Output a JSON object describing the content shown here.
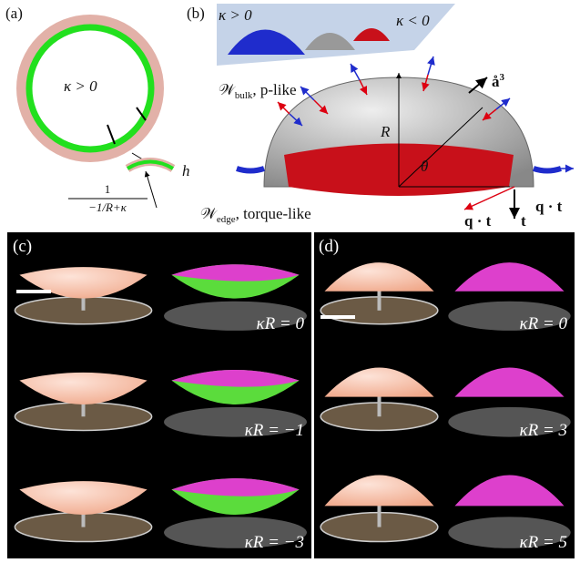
{
  "panel_a": {
    "label": "(a)",
    "curvature": "κ > 0",
    "fraction_numerator": "1",
    "fraction_denominator": "−1/R+κ",
    "thickness": "h"
  },
  "panel_b": {
    "label": "(b)",
    "inset_left": "κ > 0",
    "inset_right": "κ < 0",
    "bulk": {
      "symbol": "𝒲",
      "subscript": "bulk",
      "text": ", p-like"
    },
    "radius": "R",
    "angle": "θ",
    "normal": "å",
    "normal_index": "3",
    "edge": {
      "symbol": "𝒲",
      "subscript": "edge",
      "text": ", torque-like"
    },
    "force_left": "q · t",
    "tangent": "t",
    "force_right": "q · t"
  },
  "panel_c": {
    "label": "(c)",
    "rows": [
      "κR = 0",
      "κR = −1",
      "κR = −3"
    ]
  },
  "panel_d": {
    "label": "(d)",
    "rows": [
      "κR = 0",
      "κR = 3",
      "κR = 5"
    ]
  }
}
